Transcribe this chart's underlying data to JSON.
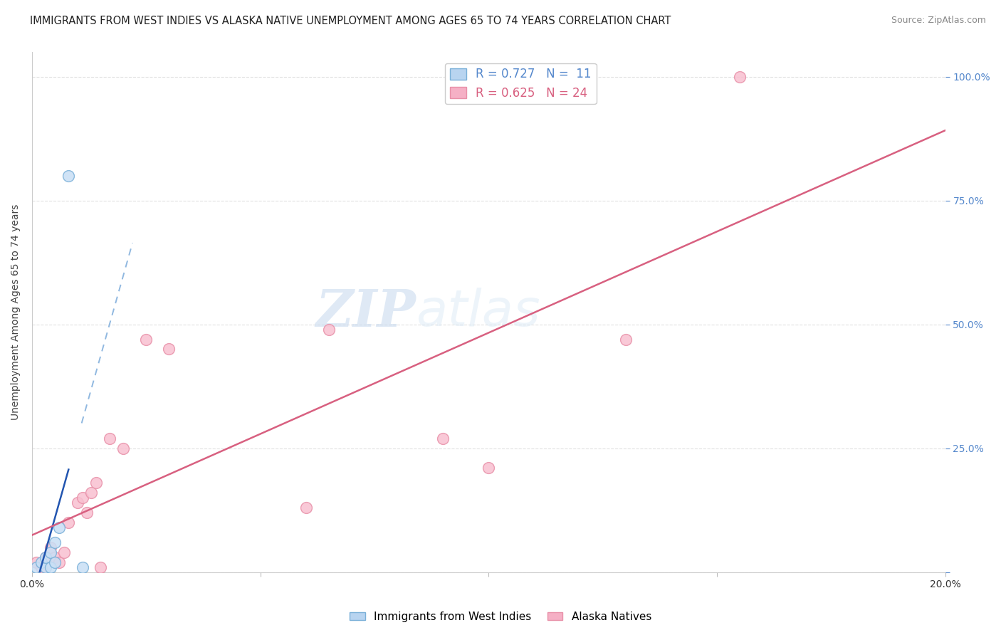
{
  "title": "IMMIGRANTS FROM WEST INDIES VS ALASKA NATIVE UNEMPLOYMENT AMONG AGES 65 TO 74 YEARS CORRELATION CHART",
  "source": "Source: ZipAtlas.com",
  "ylabel": "Unemployment Among Ages 65 to 74 years",
  "watermark_zip": "ZIP",
  "watermark_atlas": "atlas",
  "xlim": [
    0.0,
    0.2
  ],
  "ylim": [
    0.0,
    1.05
  ],
  "xticks": [
    0.0,
    0.05,
    0.1,
    0.15,
    0.2
  ],
  "xtick_labels": [
    "0.0%",
    "",
    "",
    "",
    "20.0%"
  ],
  "yticks": [
    0.0,
    0.25,
    0.5,
    0.75,
    1.0
  ],
  "left_ytick_labels": [
    "",
    "",
    "",
    "",
    ""
  ],
  "right_ytick_labels": [
    "",
    "25.0%",
    "50.0%",
    "75.0%",
    "100.0%"
  ],
  "legend1_label": "R = 0.727   N =  11",
  "legend2_label": "R = 0.625   N = 24",
  "legend1_facecolor": "#b8d4f0",
  "legend2_facecolor": "#f5b0c5",
  "series1_facecolor": "#c8dff5",
  "series1_edgecolor": "#7ab0d8",
  "series2_facecolor": "#f8c0d0",
  "series2_edgecolor": "#e890a8",
  "trendline1_color": "#2255b0",
  "trendline1_dash_color": "#90b8e0",
  "trendline2_color": "#d86080",
  "grid_color": "#e0e0e0",
  "bg_color": "#ffffff",
  "title_fontsize": 10.5,
  "axis_label_fontsize": 10,
  "tick_fontsize": 10,
  "right_tick_color": "#5588cc",
  "west_indies_x": [
    0.001,
    0.002,
    0.003,
    0.003,
    0.004,
    0.004,
    0.005,
    0.005,
    0.006,
    0.008,
    0.011
  ],
  "west_indies_y": [
    0.01,
    0.02,
    0.01,
    0.03,
    0.01,
    0.04,
    0.02,
    0.06,
    0.09,
    0.8,
    0.01
  ],
  "alaska_x": [
    0.001,
    0.002,
    0.003,
    0.004,
    0.005,
    0.006,
    0.007,
    0.008,
    0.01,
    0.011,
    0.012,
    0.013,
    0.014,
    0.015,
    0.017,
    0.02,
    0.025,
    0.03,
    0.06,
    0.065,
    0.09,
    0.1,
    0.13,
    0.155
  ],
  "alaska_y": [
    0.02,
    0.01,
    0.03,
    0.05,
    0.03,
    0.02,
    0.04,
    0.1,
    0.14,
    0.15,
    0.12,
    0.16,
    0.18,
    0.01,
    0.27,
    0.25,
    0.47,
    0.45,
    0.13,
    0.49,
    0.27,
    0.21,
    0.47,
    1.0
  ],
  "scatter_size": 130,
  "scatter_alpha": 0.85,
  "trendline_lw": 1.8
}
